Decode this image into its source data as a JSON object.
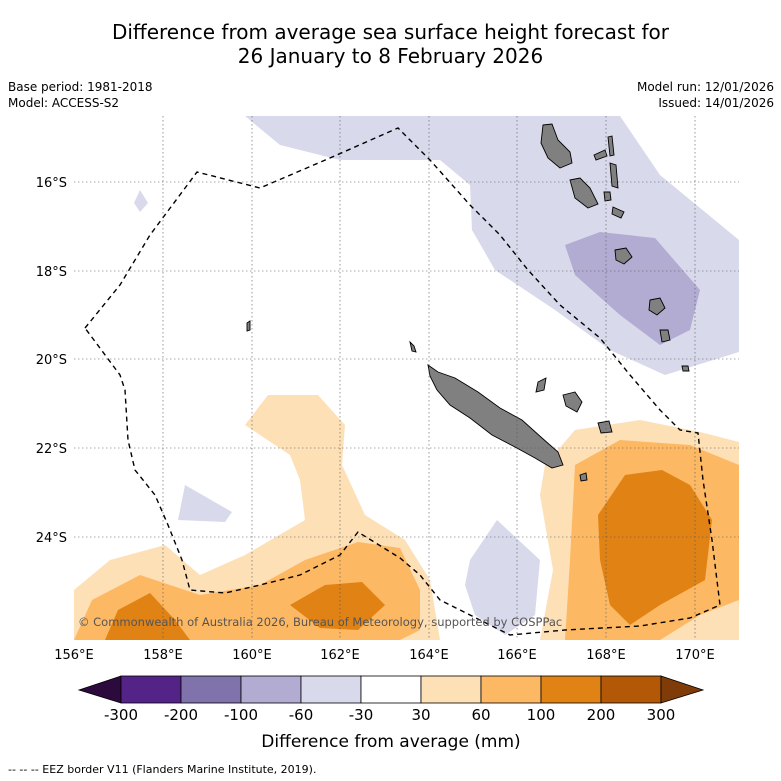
{
  "title_line1": "Difference from average sea surface height forecast for",
  "title_line2": "26 January to 8 February 2026",
  "base_period": "Base period: 1981-2018",
  "model": "Model: ACCESS-S2",
  "model_run": "Model run: 12/01/2026",
  "issued": "Issued: 14/01/2026",
  "copyright": "© Commonwealth of Australia 2026, Bureau of Meteorology, supported by COSPPac",
  "lat_labels": [
    "16°S",
    "18°S",
    "20°S",
    "22°S",
    "24°S"
  ],
  "lon_labels": [
    "156°E",
    "158°E",
    "160°E",
    "162°E",
    "164°E",
    "166°E",
    "168°E",
    "170°E"
  ],
  "colorbar": {
    "label": "Difference from average (mm)",
    "ticks": [
      "-300",
      "-200",
      "-100",
      "-60",
      "-30",
      "30",
      "60",
      "100",
      "200",
      "300"
    ],
    "colors": {
      "below_min": "#2d0a3e",
      "m300_m200": "#542388",
      "m200_m100": "#8073ac",
      "m100_m60": "#b2abd2",
      "m60_m30": "#d8daeb",
      "m30_30": "#ffffff",
      "p30_60": "#fee0b6",
      "p60_100": "#fdb863",
      "p100_200": "#e08214",
      "p200_300": "#b35806",
      "above_max": "#7f3b08"
    }
  },
  "land_color": "#808080",
  "footnote": "-- -- -- EEZ border V11 (Flanders Marine Institute, 2019)."
}
